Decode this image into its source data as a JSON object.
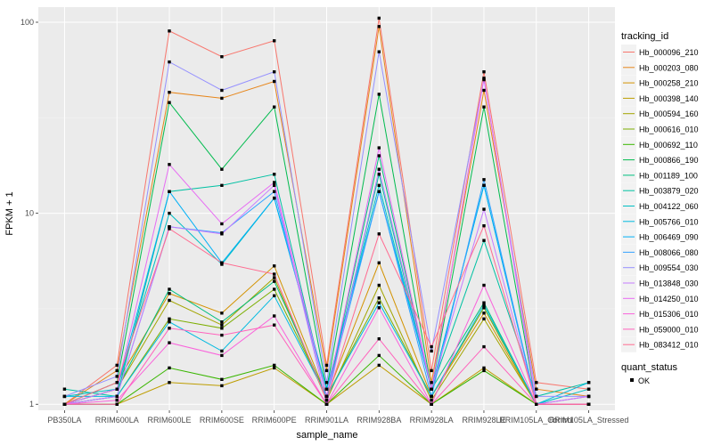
{
  "chart_data": {
    "type": "line",
    "xlabel": "sample_name",
    "ylabel": "FPKM + 1",
    "yscale": "log10",
    "ylim": [
      0.93,
      120
    ],
    "y_ticks": [
      1,
      10,
      100
    ],
    "y_tick_labels": [
      "1",
      "10",
      "100"
    ],
    "grid": true,
    "legend_position": "right",
    "categories": [
      "PB350LA",
      "RRIM600LA",
      "RRIM600LE",
      "RRIM600SE",
      "RRIM600PE",
      "RRIM901LA",
      "RRIM928BA",
      "RRIM928LA",
      "RRIM928LE",
      "RRIM105LA_Control",
      "RRIM105LA_Stressed"
    ],
    "color_legend_title": "tracking_id",
    "shape_legend_title": "quant_status",
    "shape_legend_items": [
      "OK"
    ],
    "series": [
      {
        "name": "Hb_000096_210",
        "color": "#F8766D",
        "values": [
          1.0,
          1.6,
          90,
          66,
          80,
          1.6,
          105,
          1.5,
          55,
          1.3,
          1.2
        ]
      },
      {
        "name": "Hb_000203_080",
        "color": "#E7861B",
        "values": [
          1.0,
          1.5,
          43,
          40,
          49,
          1.5,
          95,
          1.3,
          44,
          1.2,
          1.1
        ]
      },
      {
        "name": "Hb_000258_210",
        "color": "#D39200",
        "values": [
          1.0,
          1.3,
          3.8,
          3.0,
          5.3,
          1.1,
          5.5,
          1.1,
          3.0,
          1.0,
          1.0
        ]
      },
      {
        "name": "Hb_000398_140",
        "color": "#BD9D00",
        "values": [
          1.0,
          1.0,
          1.3,
          1.25,
          1.55,
          1.0,
          1.6,
          1.0,
          1.55,
          1.0,
          1.0
        ]
      },
      {
        "name": "Hb_000594_160",
        "color": "#A3A500",
        "values": [
          1.0,
          1.2,
          3.5,
          2.6,
          4.6,
          1.05,
          4.2,
          1.05,
          2.8,
          1.0,
          1.0
        ]
      },
      {
        "name": "Hb_000616_010",
        "color": "#7CAE00",
        "values": [
          1.0,
          1.1,
          2.8,
          2.5,
          4.0,
          1.1,
          3.6,
          1.1,
          3.2,
          1.0,
          1.0
        ]
      },
      {
        "name": "Hb_000692_110",
        "color": "#39B600",
        "values": [
          1.0,
          1.0,
          1.55,
          1.35,
          1.6,
          1.0,
          1.8,
          1.0,
          1.5,
          1.0,
          1.0
        ]
      },
      {
        "name": "Hb_000866_190",
        "color": "#00BB4E",
        "values": [
          1.0,
          1.3,
          38,
          17,
          36,
          1.2,
          42,
          1.2,
          36,
          1.0,
          1.0
        ]
      },
      {
        "name": "Hb_001189_100",
        "color": "#00BF7D",
        "values": [
          1.0,
          1.2,
          4.0,
          2.7,
          4.4,
          1.1,
          20,
          1.2,
          3.4,
          1.0,
          1.0
        ]
      },
      {
        "name": "Hb_003879_020",
        "color": "#00C1A3",
        "values": [
          1.2,
          1.1,
          13,
          14,
          16,
          1.1,
          16,
          1.2,
          7.2,
          1.1,
          1.3
        ]
      },
      {
        "name": "Hb_004122_060",
        "color": "#00BFC4",
        "values": [
          1.1,
          1.2,
          10,
          5.4,
          12,
          1.2,
          14,
          1.2,
          14,
          1.0,
          1.2
        ]
      },
      {
        "name": "Hb_005766_010",
        "color": "#00BAE0",
        "values": [
          1.1,
          1.1,
          2.7,
          1.9,
          3.7,
          1.1,
          3.4,
          1.1,
          3.3,
          1.0,
          1.3
        ]
      },
      {
        "name": "Hb_006469_090",
        "color": "#00B0F6",
        "values": [
          1.0,
          1.2,
          13,
          5.5,
          12,
          1.2,
          13,
          1.2,
          14,
          1.0,
          1.1
        ]
      },
      {
        "name": "Hb_008066_080",
        "color": "#35A2FF",
        "values": [
          1.0,
          1.1,
          8.5,
          7.9,
          13,
          1.1,
          13,
          1.1,
          15,
          1.0,
          1.0
        ]
      },
      {
        "name": "Hb_009554_030",
        "color": "#9590FF",
        "values": [
          1.1,
          1.4,
          62,
          44,
          55,
          1.3,
          70,
          1.9,
          50,
          1.1,
          1.1
        ]
      },
      {
        "name": "Hb_013848_030",
        "color": "#C77CFF",
        "values": [
          1.0,
          1.1,
          8.5,
          7.8,
          14,
          1.0,
          17,
          1.2,
          10.5,
          1.0,
          1.0
        ]
      },
      {
        "name": "Hb_014250_010",
        "color": "#E76BF3",
        "values": [
          1.0,
          1.2,
          18,
          8.8,
          14.5,
          1.1,
          22,
          1.2,
          51,
          1.0,
          1.1
        ]
      },
      {
        "name": "Hb_015306_010",
        "color": "#FA62DB",
        "values": [
          1.0,
          1.05,
          2.1,
          1.8,
          2.9,
          1.0,
          3.2,
          1.0,
          4.2,
          1.0,
          1.0
        ]
      },
      {
        "name": "Hb_059000_010",
        "color": "#FF62BC",
        "values": [
          1.0,
          1.0,
          2.5,
          2.3,
          2.6,
          1.0,
          2.2,
          1.0,
          2.0,
          1.0,
          1.0
        ]
      },
      {
        "name": "Hb_083412_010",
        "color": "#FF6C91",
        "values": [
          1.0,
          1.3,
          8.3,
          5.5,
          4.8,
          1.05,
          7.8,
          2.0,
          8.6,
          1.0,
          1.0
        ]
      }
    ]
  }
}
